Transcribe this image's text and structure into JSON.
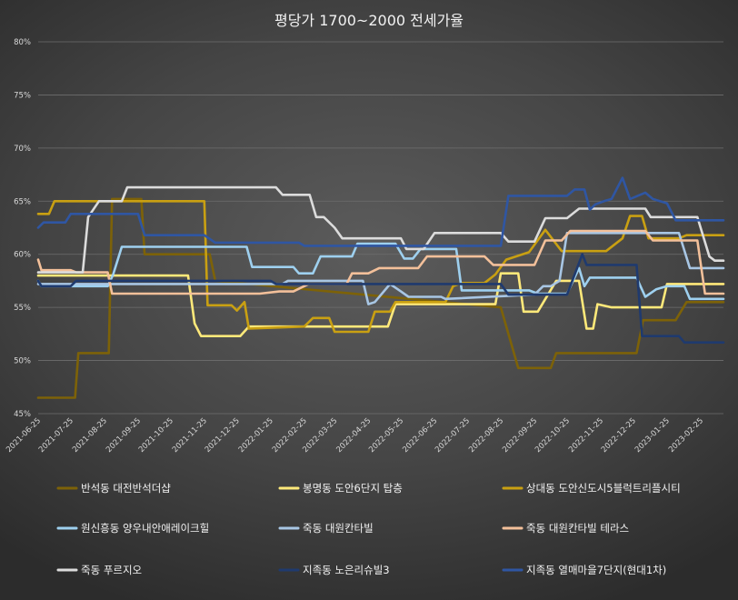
{
  "chart_data": {
    "type": "line",
    "title": "평당가 1700~2000 전세가율",
    "xlabel": "",
    "ylabel": "",
    "ylim": [
      45,
      80
    ],
    "yticks": [
      45,
      50,
      55,
      60,
      65,
      70,
      75,
      80
    ],
    "ytick_labels": [
      "45%",
      "50%",
      "55%",
      "60%",
      "65%",
      "70%",
      "75%",
      "80%"
    ],
    "x_range": [
      "2021-06-25",
      "2023-03-18"
    ],
    "xticks": [
      "2021-06-25",
      "2021-07-25",
      "2021-08-25",
      "2021-09-25",
      "2021-10-25",
      "2021-11-25",
      "2021-12-25",
      "2022-01-25",
      "2022-02-25",
      "2022-03-25",
      "2022-04-25",
      "2022-05-25",
      "2022-06-25",
      "2022-07-25",
      "2022-08-25",
      "2022-09-25",
      "2022-10-25",
      "2022-11-25",
      "2022-12-25",
      "2023-01-25",
      "2023-02-25"
    ],
    "grid": true,
    "legend_position": "bottom",
    "series": [
      {
        "name": "반석동 대전반석더샵",
        "color": "#7d6208",
        "points": [
          [
            "2021-06-25",
            46.5
          ],
          [
            "2021-07-29",
            46.5
          ],
          [
            "2021-08-01",
            50.7
          ],
          [
            "2021-08-29",
            50.7
          ],
          [
            "2021-09-01",
            65.2
          ],
          [
            "2021-09-28",
            65.2
          ],
          [
            "2021-10-01",
            60.0
          ],
          [
            "2021-11-30",
            60.0
          ],
          [
            "2021-12-05",
            57.5
          ],
          [
            "2022-08-25",
            55.0
          ],
          [
            "2022-09-10",
            49.3
          ],
          [
            "2022-10-10",
            49.3
          ],
          [
            "2022-10-15",
            50.7
          ],
          [
            "2022-12-28",
            50.7
          ],
          [
            "2023-01-03",
            53.8
          ],
          [
            "2023-02-02",
            53.8
          ],
          [
            "2023-02-12",
            55.5
          ],
          [
            "2023-03-18",
            55.5
          ]
        ]
      },
      {
        "name": "봉명동 도안6단지 탑층",
        "color": "#ffe97a",
        "points": [
          [
            "2021-06-25",
            58.0
          ],
          [
            "2021-11-10",
            58.0
          ],
          [
            "2021-11-16",
            53.5
          ],
          [
            "2021-11-22",
            52.3
          ],
          [
            "2021-12-28",
            52.3
          ],
          [
            "2022-01-05",
            53.2
          ],
          [
            "2022-05-13",
            53.2
          ],
          [
            "2022-05-20",
            55.3
          ],
          [
            "2022-08-20",
            55.3
          ],
          [
            "2022-08-25",
            58.2
          ],
          [
            "2022-09-10",
            58.2
          ],
          [
            "2022-09-15",
            54.6
          ],
          [
            "2022-09-28",
            54.6
          ],
          [
            "2022-10-15",
            57.5
          ],
          [
            "2022-11-05",
            57.5
          ],
          [
            "2022-11-12",
            53.0
          ],
          [
            "2022-11-18",
            53.0
          ],
          [
            "2022-11-22",
            55.3
          ],
          [
            "2022-12-05",
            55.0
          ],
          [
            "2023-01-20",
            55.0
          ],
          [
            "2023-01-25",
            57.2
          ],
          [
            "2023-03-18",
            57.2
          ]
        ]
      },
      {
        "name": "상대동 도안신도시5블럭트리플시티",
        "color": "#c9a012",
        "points": [
          [
            "2021-06-25",
            63.8
          ],
          [
            "2021-07-05",
            63.8
          ],
          [
            "2021-07-10",
            65.0
          ],
          [
            "2021-11-25",
            65.0
          ],
          [
            "2021-11-28",
            55.2
          ],
          [
            "2021-12-20",
            55.2
          ],
          [
            "2021-12-25",
            54.7
          ],
          [
            "2022-01-01",
            55.5
          ],
          [
            "2022-01-05",
            53.0
          ],
          [
            "2022-02-25",
            53.2
          ],
          [
            "2022-03-05",
            54.0
          ],
          [
            "2022-03-20",
            54.0
          ],
          [
            "2022-03-25",
            52.7
          ],
          [
            "2022-04-25",
            52.7
          ],
          [
            "2022-05-01",
            54.6
          ],
          [
            "2022-05-15",
            54.6
          ],
          [
            "2022-05-20",
            55.5
          ],
          [
            "2022-07-05",
            55.5
          ],
          [
            "2022-07-12",
            57.0
          ],
          [
            "2022-07-20",
            57.3
          ],
          [
            "2022-08-10",
            57.3
          ],
          [
            "2022-08-20",
            58.1
          ],
          [
            "2022-08-30",
            59.5
          ],
          [
            "2022-09-20",
            60.2
          ],
          [
            "2022-10-05",
            62.3
          ],
          [
            "2022-10-20",
            60.3
          ],
          [
            "2022-11-30",
            60.3
          ],
          [
            "2022-12-15",
            61.5
          ],
          [
            "2022-12-22",
            63.6
          ],
          [
            "2023-01-02",
            63.6
          ],
          [
            "2023-01-08",
            61.5
          ],
          [
            "2023-02-05",
            61.5
          ],
          [
            "2023-02-12",
            61.8
          ],
          [
            "2023-03-18",
            61.8
          ]
        ]
      },
      {
        "name": "원신흥동 양우내안애레이크힐",
        "color": "#9ed0ef",
        "points": [
          [
            "2021-06-25",
            57.5
          ],
          [
            "2021-06-28",
            57.0
          ],
          [
            "2021-08-28",
            57.0
          ],
          [
            "2021-09-02",
            58.1
          ],
          [
            "2021-09-10",
            60.7
          ],
          [
            "2022-01-03",
            60.7
          ],
          [
            "2022-01-08",
            58.8
          ],
          [
            "2022-02-15",
            58.8
          ],
          [
            "2022-02-20",
            58.2
          ],
          [
            "2022-03-05",
            58.2
          ],
          [
            "2022-03-12",
            59.8
          ],
          [
            "2022-04-10",
            59.8
          ],
          [
            "2022-04-15",
            61.0
          ],
          [
            "2022-05-20",
            61.0
          ],
          [
            "2022-05-28",
            59.6
          ],
          [
            "2022-06-05",
            59.6
          ],
          [
            "2022-06-12",
            60.5
          ],
          [
            "2022-07-15",
            60.5
          ],
          [
            "2022-07-20",
            56.6
          ],
          [
            "2022-09-20",
            56.6
          ],
          [
            "2022-09-28",
            56.3
          ],
          [
            "2022-10-25",
            56.3
          ],
          [
            "2022-11-05",
            58.7
          ],
          [
            "2022-11-10",
            57.0
          ],
          [
            "2022-11-15",
            57.8
          ],
          [
            "2022-12-28",
            57.8
          ],
          [
            "2023-01-05",
            56.0
          ],
          [
            "2023-01-15",
            56.7
          ],
          [
            "2023-01-25",
            57.0
          ],
          [
            "2023-02-10",
            57.0
          ],
          [
            "2023-02-15",
            55.8
          ],
          [
            "2023-03-18",
            55.8
          ]
        ]
      },
      {
        "name": "죽동 대원칸타빌",
        "color": "#a8c6e4",
        "points": [
          [
            "2021-06-25",
            57.2
          ],
          [
            "2022-02-05",
            57.2
          ],
          [
            "2022-02-10",
            57.5
          ],
          [
            "2022-04-20",
            57.5
          ],
          [
            "2022-04-25",
            55.3
          ],
          [
            "2022-05-01",
            55.5
          ],
          [
            "2022-05-15",
            57.2
          ],
          [
            "2022-05-25",
            56.5
          ],
          [
            "2022-06-01",
            56.0
          ],
          [
            "2022-07-01",
            56.0
          ],
          [
            "2022-07-05",
            55.8
          ],
          [
            "2022-09-25",
            56.2
          ],
          [
            "2022-10-03",
            57.0
          ],
          [
            "2022-10-10",
            57.0
          ],
          [
            "2022-10-18",
            57.5
          ],
          [
            "2022-10-25",
            62.0
          ],
          [
            "2023-02-05",
            62.0
          ],
          [
            "2023-02-15",
            58.7
          ],
          [
            "2023-03-18",
            58.7
          ]
        ]
      },
      {
        "name": "죽동 대원칸타빌 테라스",
        "color": "#f3c09a",
        "points": [
          [
            "2021-06-25",
            59.5
          ],
          [
            "2021-06-28",
            58.5
          ],
          [
            "2021-07-25",
            58.5
          ],
          [
            "2021-07-30",
            58.3
          ],
          [
            "2021-08-28",
            58.3
          ],
          [
            "2021-09-01",
            56.3
          ],
          [
            "2022-01-15",
            56.3
          ],
          [
            "2022-02-02",
            56.5
          ],
          [
            "2022-02-15",
            56.5
          ],
          [
            "2022-03-01",
            57.2
          ],
          [
            "2022-04-05",
            57.2
          ],
          [
            "2022-04-10",
            58.2
          ],
          [
            "2022-04-25",
            58.2
          ],
          [
            "2022-05-05",
            58.7
          ],
          [
            "2022-06-10",
            58.7
          ],
          [
            "2022-06-18",
            59.8
          ],
          [
            "2022-08-10",
            59.8
          ],
          [
            "2022-08-18",
            59.0
          ],
          [
            "2022-09-25",
            59.0
          ],
          [
            "2022-10-05",
            61.3
          ],
          [
            "2022-10-20",
            61.3
          ],
          [
            "2022-10-28",
            62.2
          ],
          [
            "2023-01-05",
            62.2
          ],
          [
            "2023-01-12",
            61.3
          ],
          [
            "2023-02-22",
            61.3
          ],
          [
            "2023-03-01",
            56.3
          ],
          [
            "2023-03-18",
            56.3
          ]
        ]
      },
      {
        "name": "죽동 푸르지오",
        "color": "#dcdcdc",
        "points": [
          [
            "2021-06-25",
            58.3
          ],
          [
            "2021-08-05",
            58.3
          ],
          [
            "2021-08-10",
            63.5
          ],
          [
            "2021-08-20",
            65.0
          ],
          [
            "2021-09-10",
            65.0
          ],
          [
            "2021-09-15",
            66.3
          ],
          [
            "2022-01-30",
            66.3
          ],
          [
            "2022-02-05",
            65.6
          ],
          [
            "2022-03-02",
            65.6
          ],
          [
            "2022-03-08",
            63.5
          ],
          [
            "2022-03-15",
            63.5
          ],
          [
            "2022-03-25",
            62.5
          ],
          [
            "2022-04-01",
            61.5
          ],
          [
            "2022-05-25",
            61.5
          ],
          [
            "2022-05-30",
            60.5
          ],
          [
            "2022-06-15",
            60.5
          ],
          [
            "2022-06-25",
            62.0
          ],
          [
            "2022-08-25",
            62.0
          ],
          [
            "2022-09-01",
            61.2
          ],
          [
            "2022-09-25",
            61.2
          ],
          [
            "2022-10-05",
            63.4
          ],
          [
            "2022-10-25",
            63.4
          ],
          [
            "2022-11-05",
            64.3
          ],
          [
            "2023-01-05",
            64.3
          ],
          [
            "2023-01-10",
            63.5
          ],
          [
            "2023-02-22",
            63.5
          ],
          [
            "2023-03-05",
            59.8
          ],
          [
            "2023-03-10",
            59.4
          ],
          [
            "2023-03-18",
            59.4
          ]
        ]
      },
      {
        "name": "지족동 노은리슈빌3",
        "color": "#1f3a6e",
        "points": [
          [
            "2021-06-25",
            57.5
          ],
          [
            "2021-06-28",
            57.0
          ],
          [
            "2021-07-25",
            57.0
          ],
          [
            "2021-07-30",
            57.5
          ],
          [
            "2022-01-25",
            57.5
          ],
          [
            "2022-01-30",
            57.2
          ],
          [
            "2022-08-25",
            57.2
          ],
          [
            "2022-09-01",
            56.2
          ],
          [
            "2022-10-25",
            56.2
          ],
          [
            "2022-11-08",
            60.0
          ],
          [
            "2022-11-12",
            59.0
          ],
          [
            "2022-12-28",
            59.0
          ],
          [
            "2023-01-02",
            52.3
          ],
          [
            "2023-02-05",
            52.3
          ],
          [
            "2023-02-10",
            51.7
          ],
          [
            "2023-03-18",
            51.7
          ]
        ]
      },
      {
        "name": "지족동 열매마을7단지(현대1차)",
        "color": "#2f56a3",
        "points": [
          [
            "2021-06-25",
            62.5
          ],
          [
            "2021-06-30",
            63.0
          ],
          [
            "2021-07-20",
            63.0
          ],
          [
            "2021-07-25",
            63.8
          ],
          [
            "2021-09-25",
            63.8
          ],
          [
            "2021-10-01",
            61.8
          ],
          [
            "2021-11-25",
            61.8
          ],
          [
            "2021-12-05",
            61.1
          ],
          [
            "2022-02-20",
            61.1
          ],
          [
            "2022-02-25",
            60.8
          ],
          [
            "2022-08-25",
            60.8
          ],
          [
            "2022-09-01",
            65.5
          ],
          [
            "2022-10-25",
            65.5
          ],
          [
            "2022-11-01",
            66.1
          ],
          [
            "2022-11-10",
            66.1
          ],
          [
            "2022-11-15",
            64.2
          ],
          [
            "2022-11-20",
            64.7
          ],
          [
            "2022-11-28",
            65.0
          ],
          [
            "2022-12-05",
            65.2
          ],
          [
            "2022-12-15",
            67.2
          ],
          [
            "2022-12-22",
            65.2
          ],
          [
            "2023-01-05",
            65.8
          ],
          [
            "2023-01-12",
            65.2
          ],
          [
            "2023-01-25",
            64.8
          ],
          [
            "2023-02-02",
            63.2
          ],
          [
            "2023-03-18",
            63.2
          ]
        ]
      }
    ]
  }
}
